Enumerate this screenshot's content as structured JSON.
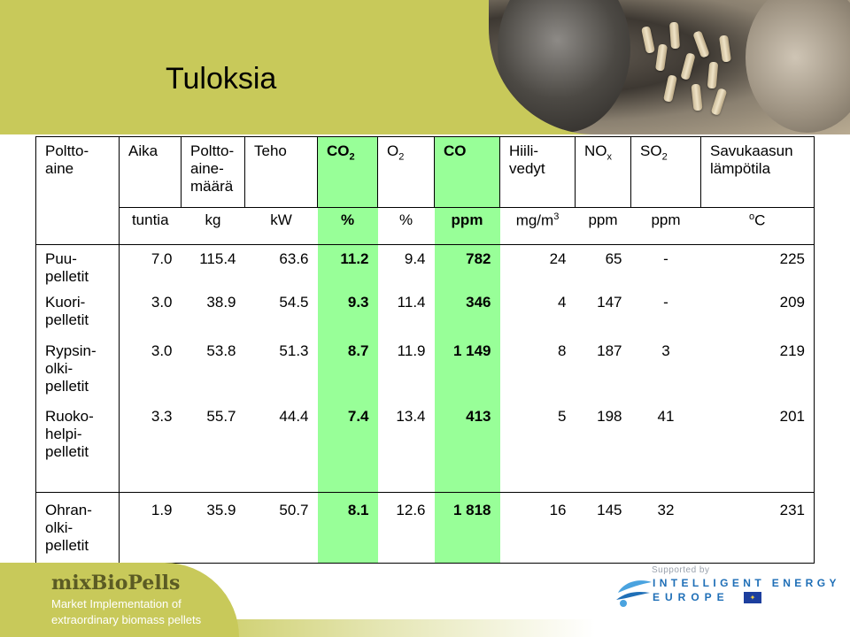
{
  "slide": {
    "title": "Tuloksia"
  },
  "table": {
    "headers": [
      {
        "line1": "Poltto-",
        "line2": "aine",
        "line3": ""
      },
      {
        "line1": "Aika",
        "line2": "",
        "line3": ""
      },
      {
        "line1": "Poltto-",
        "line2": "aine-",
        "line3": "määrä"
      },
      {
        "line1": "Teho",
        "line2": "",
        "line3": ""
      },
      {
        "base": "CO",
        "sub": "2"
      },
      {
        "base": "O",
        "sub": "2"
      },
      {
        "line1": "CO",
        "line2": "",
        "line3": ""
      },
      {
        "line1": "Hiili-",
        "line2": "vedyt",
        "line3": ""
      },
      {
        "base": "NO",
        "sub": "x"
      },
      {
        "base": "SO",
        "sub": "2"
      },
      {
        "line1": "Savukaasun",
        "line2": "lämpötila",
        "line3": ""
      }
    ],
    "units": {
      "aika": "tuntia",
      "maara": "kg",
      "teho": "kW",
      "co2": "%",
      "o2": "%",
      "co": "ppm",
      "hiili_base": "mg/m",
      "hiili_sup": "3",
      "nox": "ppm",
      "so2": "ppm",
      "temp_sup": "o",
      "temp_base": "C"
    },
    "rows": [
      {
        "fuel": [
          "Puu-",
          "pelletit",
          ""
        ],
        "aika": "7.0",
        "maara": "115.4",
        "teho": "63.6",
        "co2": "11.2",
        "o2": "9.4",
        "co": "782",
        "hiili": "24",
        "nox": "65",
        "so2": "-",
        "temp": "225"
      },
      {
        "fuel": [
          "Kuori-",
          "pelletit",
          ""
        ],
        "aika": "3.0",
        "maara": "38.9",
        "teho": "54.5",
        "co2": "9.3",
        "o2": "11.4",
        "co": "346",
        "hiili": "4",
        "nox": "147",
        "so2": "-",
        "temp": "209"
      },
      {
        "fuel": [
          "Rypsin-",
          "olki-",
          "pelletit"
        ],
        "aika": "3.0",
        "maara": "53.8",
        "teho": "51.3",
        "co2": "8.7",
        "o2": "11.9",
        "co": "1 149",
        "hiili": "8",
        "nox": "187",
        "so2": "3",
        "temp": "219"
      },
      {
        "fuel": [
          "Ruoko-",
          "helpi-",
          "pelletit"
        ],
        "aika": "3.3",
        "maara": "55.7",
        "teho": "44.4",
        "co2": "7.4",
        "o2": "13.4",
        "co": "413",
        "hiili": "5",
        "nox": "198",
        "so2": "41",
        "temp": "201"
      },
      {
        "fuel": [
          "Ohran-",
          "olki-",
          "pelletit"
        ],
        "aika": "1.9",
        "maara": "35.9",
        "teho": "50.7",
        "co2": "8.1",
        "o2": "12.6",
        "co": "1 818",
        "hiili": "16",
        "nox": "145",
        "so2": "32",
        "temp": "231"
      }
    ]
  },
  "footer": {
    "brand": "mixBioPells",
    "tagline_line1": "Market Implementation of",
    "tagline_line2": "extraordinary biomass pellets",
    "supported_by": "Supported by",
    "iee_line1": "INTELLIGENT ENERGY",
    "iee_line2": "EUROPE"
  },
  "colors": {
    "accent_olive": "#c8c95a",
    "highlight_green": "#98ff98",
    "iee_blue": "#1f6fb7"
  },
  "icons": [
    "pellet-photo",
    "iee-swirl-logo",
    "eu-flag-icon"
  ]
}
